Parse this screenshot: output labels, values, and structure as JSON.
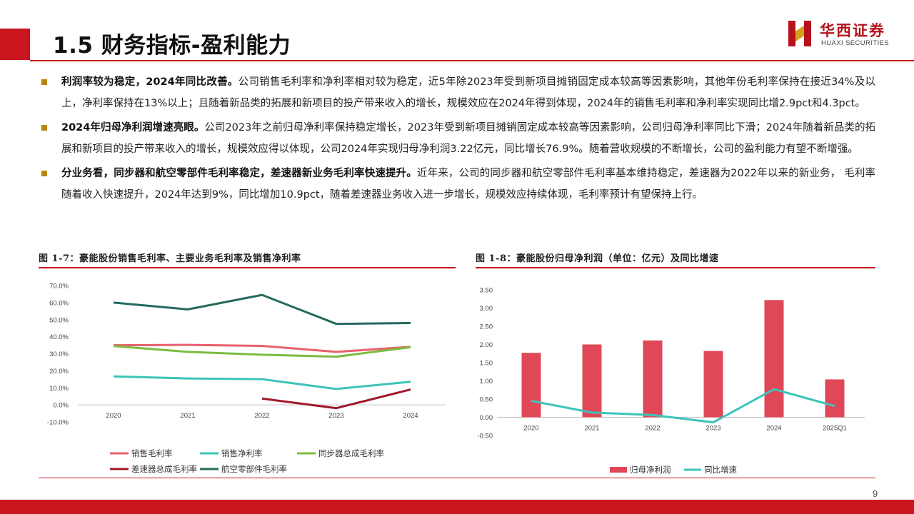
{
  "header": {
    "title": "1.5 财务指标-盈利能力",
    "logo_cn": "华西证券",
    "logo_en": "HUAXI SECURITIES"
  },
  "colors": {
    "brand_red": "#c9151e",
    "bullet_gold": "#b8860b"
  },
  "bullets": [
    {
      "lead": "利润率较为稳定，2024年同比改善。",
      "text": "公司销售毛利率和净利率相对较为稳定，近5年除2023年受到新项目摊销固定成本较高等因素影响，其他年份毛利率保持在接近34%及以上，净利率保持在13%以上；且随着新品类的拓展和新项目的投产带来收入的增长，规模效应在2024年得到体现，2024年的销售毛利率和净利率实现同比增2.9pct和4.3pct。"
    },
    {
      "lead": "2024年归母净利润增速亮眼。",
      "text": "公司2023年之前归母净利率保持稳定增长，2023年受到新项目摊销固定成本较高等因素影响，公司归母净利率同比下滑；2024年随着新品类的拓展和新项目的投产带来收入的增长，规模效应得以体现，公司2024年实现归母净利润3.22亿元，同比增长76.9%。随着营收规模的不断增长，公司的盈利能力有望不断增强。"
    },
    {
      "lead": "分业务看，同步器和航空零部件毛利率稳定，差速器新业务毛利率快速提升。",
      "text": "近年来，公司的同步器和航空零部件毛利率基本维持稳定，差速器为2022年以来的新业务， 毛利率随着收入快速提升，2024年达到9%，同比增加10.9pct，随着差速器业务收入进一步增长，规模效应持续体现，毛利率预计有望保持上行。"
    }
  ],
  "figures": {
    "fig1_title": "图 1-7：豪能股份销售毛利率、主要业务毛利率及销售净利率",
    "fig2_title": "图 1-8：豪能股份归母净利润（单位：亿元）及同比增速"
  },
  "chart_data": [
    {
      "type": "line",
      "x": [
        "2020",
        "2021",
        "2022",
        "2023",
        "2024"
      ],
      "ylim": [
        -0.1,
        0.7
      ],
      "yticks": [
        "70.0%",
        "60.0%",
        "50.0%",
        "40.0%",
        "30.0%",
        "20.0%",
        "10.0%",
        "0.0%",
        "-10.0%"
      ],
      "series": [
        {
          "name": "销售毛利率",
          "color": "#e8606a",
          "values": [
            0.35,
            0.352,
            0.346,
            0.311,
            0.34
          ]
        },
        {
          "name": "销售净利率",
          "color": "#3cc4b8",
          "values": [
            0.167,
            0.155,
            0.151,
            0.093,
            0.136
          ]
        },
        {
          "name": "同步器总成毛利率",
          "color": "#7cbb42",
          "values": [
            0.345,
            0.311,
            0.294,
            0.283,
            0.338
          ]
        },
        {
          "name": "差速器总成毛利率",
          "color": "#a0182b",
          "values": [
            null,
            null,
            0.037,
            -0.019,
            0.09
          ]
        },
        {
          "name": "航空零部件毛利率",
          "color": "#25695e",
          "values": [
            0.6,
            0.56,
            0.645,
            0.475,
            0.48
          ]
        }
      ]
    },
    {
      "type": "bar+line",
      "categories": [
        "2020",
        "2021",
        "2022",
        "2023",
        "2024",
        "2025Q1"
      ],
      "ylim": [
        -0.5,
        3.5
      ],
      "yticks": [
        "3.50",
        "3.00",
        "2.50",
        "2.00",
        "1.50",
        "1.00",
        "0.50",
        "0.00",
        "-0.50"
      ],
      "series": [
        {
          "name": "归母净利润",
          "kind": "bar",
          "color": "#e04858",
          "values": [
            1.77,
            2.0,
            2.11,
            1.82,
            3.22,
            1.04
          ]
        },
        {
          "name": "同比增速",
          "kind": "line",
          "color": "#3cc4b8",
          "values": [
            0.45,
            0.13,
            0.06,
            -0.14,
            0.77,
            0.31
          ]
        }
      ]
    }
  ],
  "page_number": "9"
}
